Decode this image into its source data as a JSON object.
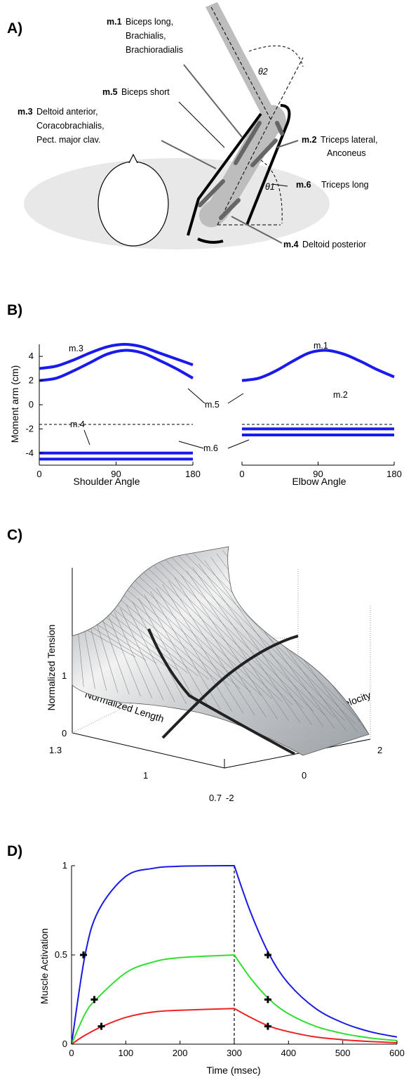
{
  "panel_a": {
    "label": "A)",
    "muscles": [
      {
        "id": "m.1",
        "names": [
          "Biceps long,",
          "Brachialis,",
          "Brachioradialis"
        ]
      },
      {
        "id": "m.5",
        "names": [
          "Biceps short"
        ]
      },
      {
        "id": "m.3",
        "names": [
          "Deltoid anterior,",
          "Coracobrachialis,",
          "Pect. major clav."
        ]
      },
      {
        "id": "m.2",
        "names": [
          "Triceps lateral,",
          "Anconeus"
        ]
      },
      {
        "id": "m.6",
        "names": [
          "Triceps long"
        ]
      },
      {
        "id": "m.4",
        "names": [
          "Deltoid posterior"
        ]
      }
    ],
    "theta1": "θ1",
    "theta2": "θ2"
  },
  "panel_b": {
    "label": "B)",
    "ylabel": "Moment arm (cm)",
    "left_xlabel": "Shoulder Angle",
    "right_xlabel": "Elbow Angle",
    "labels": {
      "m3": "m.3",
      "m1": "m.1",
      "m5": "m.5",
      "m2": "m.2",
      "m6": "m.6",
      "m4": "m.4"
    }
  },
  "panel_c": {
    "label": "C)",
    "zlabel": "Normalized Tension",
    "xlabel": "Normalized Length",
    "ylabel": "Normalized Velocity",
    "z_ticks": [
      "0",
      "1"
    ],
    "length_ticks": [
      "1.3",
      "1",
      "0.7"
    ],
    "velocity_ticks": [
      "-2",
      "0",
      "2"
    ]
  },
  "panel_d": {
    "label": "D)",
    "ylabel": "Muscle Activation",
    "xlabel": "Time (msec)"
  },
  "chart_data": [
    {
      "type": "line",
      "panel": "B-left",
      "xlabel": "Shoulder Angle",
      "ylabel": "Moment arm (cm)",
      "xlim": [
        0,
        180
      ],
      "ylim": [
        -5,
        5
      ],
      "x_ticks": [
        0,
        90,
        180
      ],
      "y_ticks": [
        -4,
        -2,
        0,
        2,
        4
      ],
      "color": "#1a1aee",
      "series": [
        {
          "name": "m.3",
          "x": [
            0,
            20,
            40,
            60,
            80,
            100,
            120,
            140,
            160,
            180
          ],
          "values": [
            3.0,
            3.2,
            3.7,
            4.3,
            4.8,
            5.0,
            4.8,
            4.3,
            3.8,
            3.3
          ]
        },
        {
          "name": "m.5",
          "x": [
            0,
            20,
            40,
            60,
            80,
            100,
            120,
            140,
            160,
            180
          ],
          "values": [
            2.0,
            2.2,
            2.8,
            3.5,
            4.2,
            4.5,
            4.3,
            3.7,
            3.0,
            2.2
          ]
        },
        {
          "name": "m.4",
          "x": [
            0,
            180
          ],
          "values": [
            -4.0,
            -4.0
          ]
        },
        {
          "name": "m.6",
          "x": [
            0,
            180
          ],
          "values": [
            -4.5,
            -4.5
          ]
        }
      ]
    },
    {
      "type": "line",
      "panel": "B-right",
      "xlabel": "Elbow Angle",
      "xlim": [
        0,
        180
      ],
      "ylim": [
        -5,
        5
      ],
      "x_ticks": [
        0,
        90,
        180
      ],
      "color": "#1a1aee",
      "series": [
        {
          "name": "m.1",
          "x": [
            0,
            20,
            40,
            60,
            80,
            100,
            120,
            140,
            160,
            180
          ],
          "values": [
            2.0,
            2.2,
            2.8,
            3.6,
            4.3,
            4.5,
            4.2,
            3.6,
            2.9,
            2.3
          ]
        },
        {
          "name": "m.2",
          "x": [
            0,
            180
          ],
          "values": [
            -2.0,
            -2.0
          ]
        },
        {
          "name": "m.6",
          "x": [
            0,
            180
          ],
          "values": [
            -2.5,
            -2.5
          ]
        }
      ]
    },
    {
      "type": "line",
      "panel": "D",
      "xlabel": "Time (msec)",
      "ylabel": "Muscle Activation",
      "xlim": [
        0,
        600
      ],
      "ylim": [
        0,
        1
      ],
      "x_ticks": [
        0,
        100,
        200,
        300,
        400,
        500,
        600
      ],
      "y_ticks": [
        0,
        0.5,
        1
      ],
      "series": [
        {
          "color": "#1a1ae6",
          "x": [
            0,
            25,
            50,
            100,
            150,
            200,
            300,
            330,
            365,
            400,
            450,
            500,
            550,
            600
          ],
          "values": [
            0,
            0.5,
            0.75,
            0.94,
            0.985,
            0.997,
            1.0,
            0.74,
            0.5,
            0.34,
            0.2,
            0.12,
            0.07,
            0.04
          ]
        },
        {
          "color": "#33dd33",
          "x": [
            0,
            25,
            45,
            100,
            150,
            200,
            300,
            330,
            365,
            400,
            450,
            500,
            550,
            600
          ],
          "values": [
            0,
            0.17,
            0.25,
            0.4,
            0.46,
            0.485,
            0.5,
            0.37,
            0.25,
            0.17,
            0.1,
            0.06,
            0.035,
            0.02
          ]
        },
        {
          "color": "#ee2222",
          "x": [
            0,
            25,
            57,
            100,
            150,
            200,
            300,
            330,
            365,
            400,
            450,
            500,
            550,
            600
          ],
          "values": [
            0,
            0.05,
            0.1,
            0.15,
            0.18,
            0.19,
            0.2,
            0.15,
            0.1,
            0.07,
            0.04,
            0.025,
            0.015,
            0.008
          ]
        }
      ],
      "markers": [
        {
          "x": 22,
          "y": 0.5
        },
        {
          "x": 42,
          "y": 0.25
        },
        {
          "x": 55,
          "y": 0.1
        },
        {
          "x": 362,
          "y": 0.5
        },
        {
          "x": 362,
          "y": 0.25
        },
        {
          "x": 362,
          "y": 0.1
        }
      ],
      "vline_x": 300
    }
  ]
}
